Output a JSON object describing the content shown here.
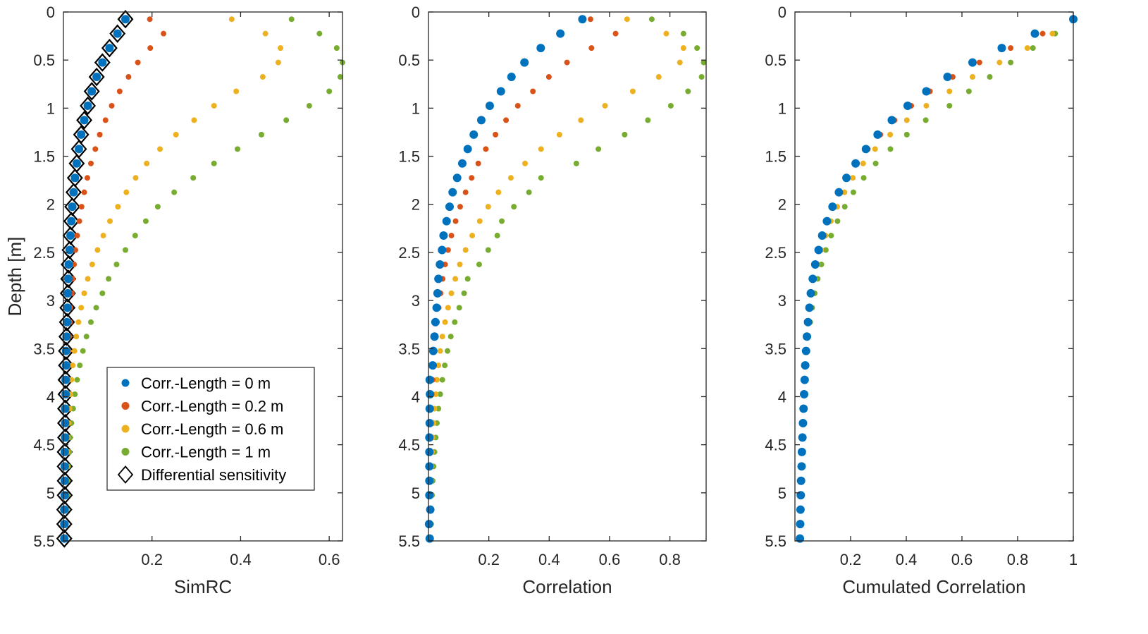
{
  "colors": {
    "cl0": "#0072BD",
    "cl02": "#D95319",
    "cl06": "#EDB120",
    "cl1": "#77AC30",
    "diff": "#000000"
  },
  "legend": {
    "entries": [
      {
        "key": "cl0",
        "label": "Corr.-Length = 0 m",
        "marker": "dot"
      },
      {
        "key": "cl02",
        "label": "Corr.-Length = 0.2 m",
        "marker": "dot"
      },
      {
        "key": "cl06",
        "label": "Corr.-Length = 0.6 m",
        "marker": "dot"
      },
      {
        "key": "cl1",
        "label": "Corr.-Length = 1 m",
        "marker": "dot"
      },
      {
        "key": "diff",
        "label": "Differential sensitivity",
        "marker": "diamond"
      }
    ]
  },
  "chart_data": [
    {
      "type": "scatter",
      "title": "",
      "xlabel": "SimRC",
      "ylabel": "Depth [m]",
      "xlim": [
        0,
        0.63
      ],
      "ylim": [
        0,
        5.5
      ],
      "xticks": [
        0.2,
        0.4,
        0.6
      ],
      "xtick_labels": [
        "0.2",
        "0.4",
        "0.6"
      ],
      "yticks": [
        0,
        0.5,
        1,
        1.5,
        2,
        2.5,
        3,
        3.5,
        4,
        4.5,
        5,
        5.5
      ],
      "ytick_labels": [
        "0",
        "0.5",
        "1",
        "1.5",
        "2",
        "2.5",
        "3",
        "3.5",
        "4",
        "4.5",
        "5",
        "5.5"
      ],
      "depths": [
        0.075,
        0.225,
        0.375,
        0.525,
        0.675,
        0.825,
        0.975,
        1.125,
        1.275,
        1.425,
        1.575,
        1.725,
        1.875,
        2.025,
        2.175,
        2.325,
        2.475,
        2.625,
        2.775,
        2.925,
        3.075,
        3.225,
        3.375,
        3.525,
        3.675,
        3.825,
        3.975,
        4.125,
        4.275,
        4.425,
        4.575,
        4.725,
        4.875,
        5.025,
        5.175,
        5.325,
        5.475
      ],
      "legend_position": "lower-right",
      "series": [
        {
          "name": "Differential sensitivity",
          "key": "diff",
          "marker": "diamond",
          "values": [
            0.14,
            0.122,
            0.104,
            0.088,
            0.075,
            0.064,
            0.055,
            0.047,
            0.04,
            0.035,
            0.03,
            0.026,
            0.023,
            0.02,
            0.018,
            0.016,
            0.014,
            0.012,
            0.011,
            0.01,
            0.009,
            0.008,
            0.007,
            0.006,
            0.006,
            0.005,
            0.005,
            0.004,
            0.004,
            0.004,
            0.003,
            0.003,
            0.003,
            0.003,
            0.002,
            0.002,
            0.002
          ]
        },
        {
          "name": "Corr.-Length = 0 m",
          "key": "cl0",
          "marker": "dot-large",
          "values": [
            0.14,
            0.122,
            0.104,
            0.088,
            0.075,
            0.064,
            0.055,
            0.047,
            0.04,
            0.035,
            0.03,
            0.026,
            0.023,
            0.02,
            0.018,
            0.016,
            0.014,
            0.012,
            0.011,
            0.01,
            0.009,
            0.008,
            0.007,
            0.006,
            0.006,
            0.005,
            0.005,
            0.004,
            0.004,
            0.004,
            0.003,
            0.003,
            0.003,
            0.003,
            0.002,
            0.002,
            0.002
          ]
        },
        {
          "name": "Corr.-Length = 0.2 m",
          "key": "cl02",
          "marker": "dot",
          "values": [
            0.195,
            0.226,
            0.196,
            0.168,
            0.147,
            0.127,
            0.109,
            0.095,
            0.082,
            0.072,
            0.062,
            0.054,
            0.047,
            0.041,
            0.036,
            0.031,
            0.027,
            0.024,
            0.021,
            0.019,
            0.016,
            0.015,
            0.013,
            0.011,
            0.01,
            0.009,
            0.008,
            0.007,
            0.006,
            0.006,
            0.005,
            0.005,
            0.004,
            0.004,
            0.003,
            0.003,
            0.003
          ]
        },
        {
          "name": "Corr.-Length = 0.6 m",
          "key": "cl06",
          "marker": "dot",
          "values": [
            0.38,
            0.456,
            0.49,
            0.485,
            0.45,
            0.39,
            0.34,
            0.295,
            0.254,
            0.218,
            0.188,
            0.163,
            0.142,
            0.123,
            0.105,
            0.09,
            0.077,
            0.065,
            0.055,
            0.047,
            0.04,
            0.034,
            0.029,
            0.025,
            0.021,
            0.018,
            0.016,
            0.014,
            0.012,
            0.01,
            0.009,
            0.008,
            0.007,
            0.006,
            0.005,
            0.004,
            0.004
          ]
        },
        {
          "name": "Corr.-Length = 1 m",
          "key": "cl1",
          "marker": "dot",
          "values": [
            0.515,
            0.578,
            0.617,
            0.63,
            0.625,
            0.6,
            0.555,
            0.503,
            0.447,
            0.393,
            0.34,
            0.293,
            0.25,
            0.213,
            0.186,
            0.162,
            0.14,
            0.12,
            0.102,
            0.088,
            0.074,
            0.062,
            0.052,
            0.044,
            0.037,
            0.031,
            0.026,
            0.022,
            0.018,
            0.015,
            0.013,
            0.011,
            0.009,
            0.008,
            0.007,
            0.006,
            0.005
          ]
        }
      ]
    },
    {
      "type": "scatter",
      "title": "",
      "xlabel": "Correlation",
      "ylabel": "",
      "xlim": [
        0,
        0.92
      ],
      "ylim": [
        0,
        5.5
      ],
      "xticks": [
        0.2,
        0.4,
        0.6,
        0.8
      ],
      "xtick_labels": [
        "0.2",
        "0.4",
        "0.6",
        "0.8"
      ],
      "yticks": [
        0,
        0.5,
        1,
        1.5,
        2,
        2.5,
        3,
        3.5,
        4,
        4.5,
        5,
        5.5
      ],
      "ytick_labels": [
        "0",
        "0.5",
        "1",
        "1.5",
        "2",
        "2.5",
        "3",
        "3.5",
        "4",
        "4.5",
        "5",
        "5.5"
      ],
      "depths": [
        0.075,
        0.225,
        0.375,
        0.525,
        0.675,
        0.825,
        0.975,
        1.125,
        1.275,
        1.425,
        1.575,
        1.725,
        1.875,
        2.025,
        2.175,
        2.325,
        2.475,
        2.625,
        2.775,
        2.925,
        3.075,
        3.225,
        3.375,
        3.525,
        3.675,
        3.825,
        3.975,
        4.125,
        4.275,
        4.425,
        4.575,
        4.725,
        4.875,
        5.025,
        5.175,
        5.325,
        5.475
      ],
      "series": [
        {
          "name": "Corr.-Length = 0 m",
          "key": "cl0",
          "marker": "dot-large",
          "values": [
            0.51,
            0.437,
            0.372,
            0.318,
            0.275,
            0.24,
            0.203,
            0.175,
            0.15,
            0.13,
            0.112,
            0.095,
            0.08,
            0.07,
            0.06,
            0.05,
            0.045,
            0.038,
            0.033,
            0.03,
            0.027,
            0.023,
            0.02,
            0.016,
            0.014,
            0.004,
            0.005,
            0.004,
            0.004,
            0.003,
            0.003,
            0.003,
            0.003,
            0.003,
            0.006,
            0.002,
            0.004
          ]
        },
        {
          "name": "Corr.-Length = 0.2 m",
          "key": "cl02",
          "marker": "dot",
          "values": [
            0.537,
            0.62,
            0.54,
            0.459,
            0.399,
            0.346,
            0.296,
            0.257,
            0.222,
            0.19,
            0.165,
            0.143,
            0.123,
            0.105,
            0.09,
            0.076,
            0.065,
            0.055,
            0.047,
            0.04,
            0.034,
            0.028,
            0.024,
            0.02,
            0.017,
            0.014,
            0.011,
            0.009,
            0.007,
            0.006,
            0.005,
            0.004,
            0.003,
            0.003,
            0.002,
            0.002,
            0.001
          ]
        },
        {
          "name": "Corr.-Length = 0.6 m",
          "key": "cl06",
          "marker": "dot",
          "values": [
            0.658,
            0.788,
            0.845,
            0.833,
            0.763,
            0.677,
            0.585,
            0.505,
            0.434,
            0.373,
            0.32,
            0.273,
            0.232,
            0.198,
            0.17,
            0.145,
            0.123,
            0.104,
            0.089,
            0.076,
            0.065,
            0.055,
            0.046,
            0.039,
            0.033,
            0.028,
            0.024,
            0.02,
            0.017,
            0.014,
            0.012,
            0.01,
            0.008,
            0.007,
            0.006,
            0.005,
            0.004
          ]
        },
        {
          "name": "Corr.-Length = 1 m",
          "key": "cl1",
          "marker": "dot",
          "values": [
            0.74,
            0.845,
            0.89,
            0.912,
            0.905,
            0.86,
            0.803,
            0.727,
            0.65,
            0.563,
            0.49,
            0.373,
            0.333,
            0.283,
            0.243,
            0.228,
            0.198,
            0.168,
            0.13,
            0.118,
            0.102,
            0.087,
            0.074,
            0.063,
            0.054,
            0.046,
            0.039,
            0.033,
            0.028,
            0.024,
            0.02,
            0.017,
            0.014,
            0.012,
            0.01,
            0.009,
            0.007
          ]
        }
      ]
    },
    {
      "type": "scatter",
      "title": "",
      "xlabel": "Cumulated Correlation",
      "ylabel": "",
      "xlim": [
        0,
        1
      ],
      "ylim": [
        0,
        5.5
      ],
      "xticks": [
        0.2,
        0.4,
        0.6,
        0.8,
        1
      ],
      "xtick_labels": [
        "0.2",
        "0.4",
        "0.6",
        "0.8",
        "1"
      ],
      "yticks": [
        0,
        0.5,
        1,
        1.5,
        2,
        2.5,
        3,
        3.5,
        4,
        4.5,
        5,
        5.5
      ],
      "ytick_labels": [
        "0",
        "0.5",
        "1",
        "1.5",
        "2",
        "2.5",
        "3",
        "3.5",
        "4",
        "4.5",
        "5",
        "5.5"
      ],
      "depths": [
        0.075,
        0.225,
        0.375,
        0.525,
        0.675,
        0.825,
        0.975,
        1.125,
        1.275,
        1.425,
        1.575,
        1.725,
        1.875,
        2.025,
        2.175,
        2.325,
        2.475,
        2.625,
        2.775,
        2.925,
        3.075,
        3.225,
        3.375,
        3.525,
        3.675,
        3.825,
        3.975,
        4.125,
        4.275,
        4.425,
        4.575,
        4.725,
        4.875,
        5.025,
        5.175,
        5.325,
        5.475
      ],
      "series": [
        {
          "name": "Corr.-Length = 0 m",
          "key": "cl0",
          "marker": "dot-large",
          "values": [
            1.0,
            0.862,
            0.743,
            0.638,
            0.548,
            0.472,
            0.405,
            0.348,
            0.297,
            0.255,
            0.218,
            0.185,
            0.158,
            0.135,
            0.115,
            0.098,
            0.085,
            0.073,
            0.064,
            0.057,
            0.052,
            0.047,
            0.043,
            0.04,
            0.037,
            0.035,
            0.033,
            0.031,
            0.029,
            0.027,
            0.025,
            0.024,
            0.022,
            0.021,
            0.02,
            0.019,
            0.018
          ]
        },
        {
          "name": "Corr.-Length = 0.2 m",
          "key": "cl02",
          "marker": "dot",
          "values": [
            1.0,
            0.89,
            0.775,
            0.663,
            0.567,
            0.485,
            0.418,
            0.358,
            0.307,
            0.262,
            0.223,
            0.19,
            0.163,
            0.14,
            0.12,
            0.102,
            0.088,
            0.076,
            0.066,
            0.058,
            0.052,
            0.047,
            0.043,
            0.04,
            0.037,
            0.034,
            0.032,
            0.03,
            0.028,
            0.027,
            0.025,
            0.024,
            0.022,
            0.021,
            0.02,
            0.019,
            0.018
          ]
        },
        {
          "name": "Corr.-Length = 0.6 m",
          "key": "cl06",
          "marker": "dot",
          "values": [
            1.0,
            0.925,
            0.835,
            0.735,
            0.638,
            0.555,
            0.472,
            0.402,
            0.342,
            0.288,
            0.245,
            0.208,
            0.178,
            0.152,
            0.129,
            0.11,
            0.094,
            0.081,
            0.07,
            0.061,
            0.054,
            0.048,
            0.044,
            0.04,
            0.037,
            0.034,
            0.032,
            0.03,
            0.028,
            0.026,
            0.025,
            0.023,
            0.022,
            0.021,
            0.02,
            0.019,
            0.018
          ]
        },
        {
          "name": "Corr.-Length = 1 m",
          "key": "cl1",
          "marker": "dot",
          "values": [
            1.0,
            0.935,
            0.855,
            0.775,
            0.7,
            0.625,
            0.555,
            0.47,
            0.402,
            0.343,
            0.29,
            0.247,
            0.21,
            0.179,
            0.153,
            0.13,
            0.111,
            0.095,
            0.082,
            0.071,
            0.062,
            0.055,
            0.049,
            0.044,
            0.04,
            0.036,
            0.033,
            0.031,
            0.029,
            0.027,
            0.025,
            0.023,
            0.022,
            0.021,
            0.02,
            0.019,
            0.018
          ]
        }
      ]
    }
  ]
}
